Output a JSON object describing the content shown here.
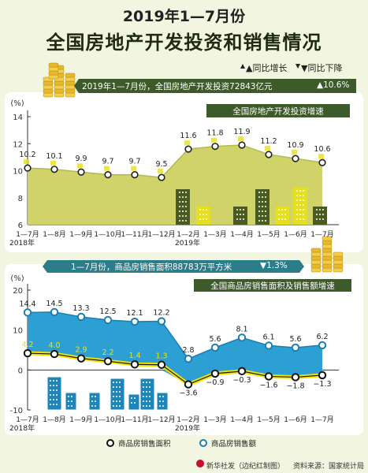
{
  "header": {
    "line1": "2019年1—7月份",
    "line2": "全国房地产开发投资和销售情况",
    "legend_up": "▲同比增长",
    "legend_down": "▼同比下降"
  },
  "banner1": {
    "text": "2019年1—7月份，全国房地产开发投资72843亿元",
    "value": "▲10.6%"
  },
  "banner2": {
    "text": "1—7月份，商品房销售面积88783万平方米",
    "value": "▼1.3%"
  },
  "footer": {
    "credit": "新华社发（边纪红制图）",
    "source": "资料来源：国家统计局"
  },
  "colors": {
    "background": "#f2f5df",
    "investment_area": "#cfd36a",
    "sales_amount_area": "#2c9fd3",
    "sales_area_line": "#1a1a1a",
    "sales_area_highlight": "#f5e200",
    "dark_green": "#3d5a2a",
    "teal": "#2b7d8a",
    "building_green": "#4a5b20",
    "building_yellow": "#e6df1e"
  },
  "chart_data": [
    {
      "type": "area",
      "title": "全国房地产开发投资增速",
      "ylabel": "(%)",
      "ylim": [
        6,
        14
      ],
      "yticks": [
        6,
        8,
        10,
        12,
        14
      ],
      "categories": [
        "1—7月",
        "1—8月",
        "1—9月",
        "1—10月",
        "1—11月",
        "1—12月",
        "1—2月",
        "1—3月",
        "1—4月",
        "1—5月",
        "1—6月",
        "1—7月"
      ],
      "year_labels": [
        "2018年",
        "2019年"
      ],
      "series": [
        {
          "values": [
            10.2,
            10.1,
            9.9,
            9.7,
            9.7,
            9.5,
            11.6,
            11.8,
            11.9,
            11.2,
            10.9,
            10.6
          ],
          "labels": [
            "10.2",
            "10.1",
            "9.9",
            "9.7",
            "9.7",
            "9.5",
            "11.6",
            "11.8",
            "11.9",
            "11.2",
            "10.9",
            "10.6"
          ]
        }
      ],
      "grid": false
    },
    {
      "type": "area",
      "title": "全国商品房销售面积及销售额增速",
      "ylabel": "(%)",
      "ylim": [
        -10,
        20
      ],
      "yticks": [
        -10,
        0,
        10,
        20
      ],
      "categories": [
        "1—7月",
        "1—8月",
        "1—9月",
        "1—10月",
        "1—11月",
        "1—12月",
        "1—2月",
        "1—3月",
        "1—4月",
        "1—5月",
        "1—6月",
        "1—7月"
      ],
      "year_labels": [
        "2018年",
        "2019年"
      ],
      "series": [
        {
          "name": "商品房销售额",
          "values": [
            14.4,
            14.5,
            13.3,
            12.5,
            12.1,
            12.2,
            2.8,
            5.6,
            8.1,
            6.1,
            5.6,
            6.2
          ],
          "labels": [
            "14.4",
            "14.5",
            "13.3",
            "12.5",
            "12.1",
            "12.2",
            "2.8",
            "5.6",
            "8.1",
            "6.1",
            "5.6",
            "6.2"
          ]
        },
        {
          "name": "商品房销售面积",
          "values": [
            4.2,
            4.0,
            2.9,
            2.2,
            1.4,
            1.3,
            -3.6,
            -0.9,
            -0.3,
            -1.6,
            -1.8,
            -1.3
          ],
          "labels": [
            "4.2",
            "4.0",
            "2.9",
            "2.2",
            "1.4",
            "1.3",
            "−3.6",
            "−0.9",
            "−0.3",
            "−1.6",
            "−1.8",
            "−1.3"
          ]
        }
      ],
      "legend": [
        "商品房销售面积",
        "商品房销售额"
      ],
      "legend_position": "bottom",
      "grid": false
    }
  ]
}
